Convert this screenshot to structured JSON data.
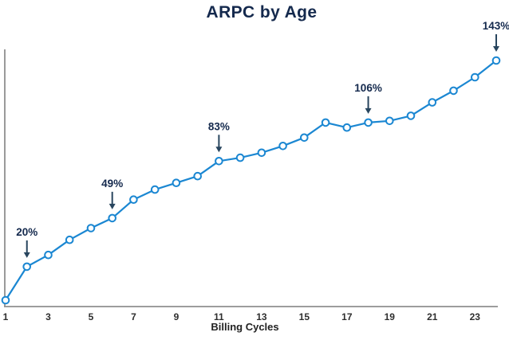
{
  "chart_data": {
    "type": "line",
    "title": "ARPC by Age",
    "xlabel": "Billing Cycles",
    "ylabel": "",
    "x": [
      1,
      2,
      3,
      4,
      5,
      6,
      7,
      8,
      9,
      10,
      11,
      12,
      13,
      14,
      15,
      16,
      17,
      18,
      19,
      20,
      21,
      22,
      23,
      24
    ],
    "values": [
      0,
      20,
      27,
      36,
      43,
      49,
      60,
      66,
      70,
      74,
      83,
      85,
      88,
      92,
      97,
      106,
      103,
      106,
      107,
      110,
      118,
      125,
      133,
      143
    ],
    "unit": "%",
    "x_ticks": [
      1,
      3,
      5,
      7,
      9,
      11,
      13,
      15,
      17,
      19,
      21,
      23
    ],
    "ylim": [
      0,
      150
    ],
    "y_axis_labels_visible": false,
    "grid": false,
    "legend": false,
    "marker": "open-circle",
    "annotations": [
      {
        "x": 2,
        "value": 20,
        "label": "20%"
      },
      {
        "x": 6,
        "value": 49,
        "label": "49%"
      },
      {
        "x": 11,
        "value": 83,
        "label": "83%"
      },
      {
        "x": 18,
        "value": 106,
        "label": "106%"
      },
      {
        "x": 24,
        "value": 143,
        "label": "143%"
      }
    ],
    "colors": {
      "line": "#1b87d2",
      "marker_fill": "#ffffff",
      "title_text": "#14294d",
      "annotation_text": "#14294d",
      "annotation_arrow": "#28455e",
      "axis_line": "#8f8f8f",
      "tick_text": "#2e2e2e",
      "xlabel_text": "#222222"
    }
  }
}
